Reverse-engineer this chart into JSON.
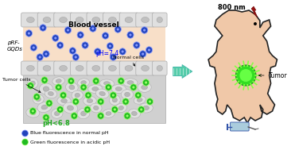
{
  "bg_color": "#ffffff",
  "blood_vessel_color": "#f8dfc8",
  "blood_vessel_border": "#c8a878",
  "cell_color": "#e0e0e0",
  "cell_border": "#aaaaaa",
  "tumor_region_color": "#d0d0d0",
  "blue_dot_color": "#2244bb",
  "blue_dot_highlight": "#8899ff",
  "green_dot_color": "#22bb22",
  "green_dot_highlight": "#99ff66",
  "mouse_body_color": "#f0c8a8",
  "mouse_border": "#222222",
  "tumor_green": "#33dd22",
  "tumor_spike": "#88ff44",
  "arrow_fill": "#55ccaa",
  "arrow_line": "#44bbaa",
  "lightning_color": "#991111",
  "syringe_color": "#aaccdd",
  "text_prf": "pRF-\nGQDs",
  "text_bv": "Blood vessel",
  "text_ph74": "pH=7.4",
  "text_ph68": "pH<6.8",
  "text_tumor_cells": "Tumor cells",
  "text_normal_cells": "Normal cells",
  "text_800nm": "800 nm",
  "text_tumor": "Tumor",
  "text_blue_leg": "Blue fluorescence in normal pH",
  "text_green_leg": "Green fluorescence in acidic pH"
}
